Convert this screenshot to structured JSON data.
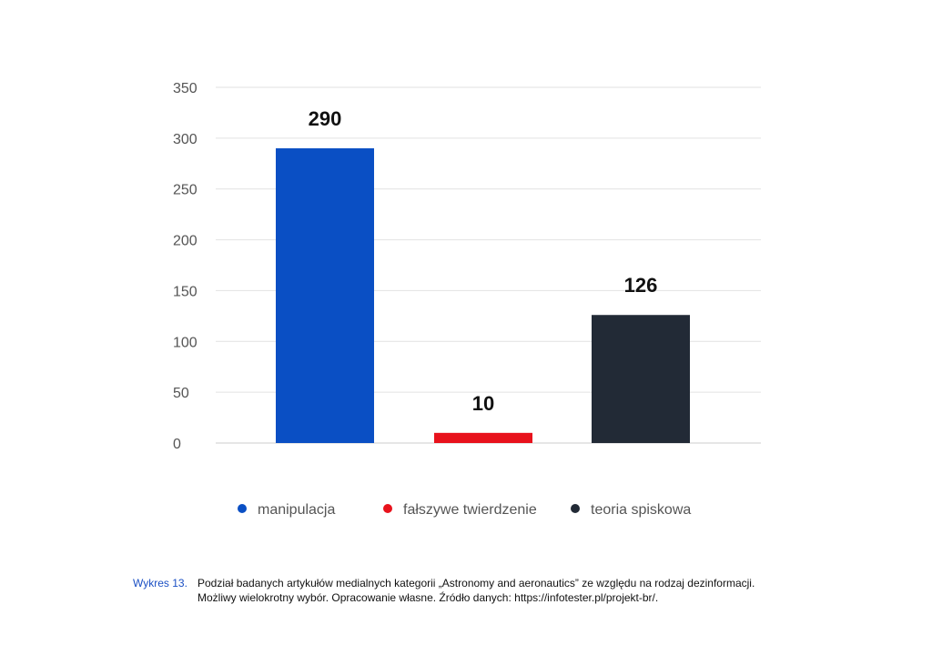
{
  "chart_data": {
    "type": "bar",
    "categories": [
      "manipulacja",
      "fałszywe twierdzenie",
      "teoria spiskowa"
    ],
    "values": [
      290,
      10,
      126
    ],
    "data_labels": [
      "290",
      "10",
      "126"
    ],
    "colors": [
      "#0a4fc4",
      "#e8121c",
      "#222a36"
    ],
    "ylim": [
      0,
      350
    ],
    "yticks": [
      "0",
      "50",
      "100",
      "150",
      "200",
      "250",
      "300",
      "350"
    ],
    "grid": true,
    "legend_position": "bottom"
  },
  "caption": {
    "label": "Wykres 13.",
    "line1": "Podział badanych artykułów medialnych kategorii „Astronomy and aeronautics” ze względu na rodzaj dezinformacji.",
    "line2": "Możliwy wielokrotny wybór. Opracowanie własne. Źródło danych: https://infotester.pl/projekt-br/."
  }
}
